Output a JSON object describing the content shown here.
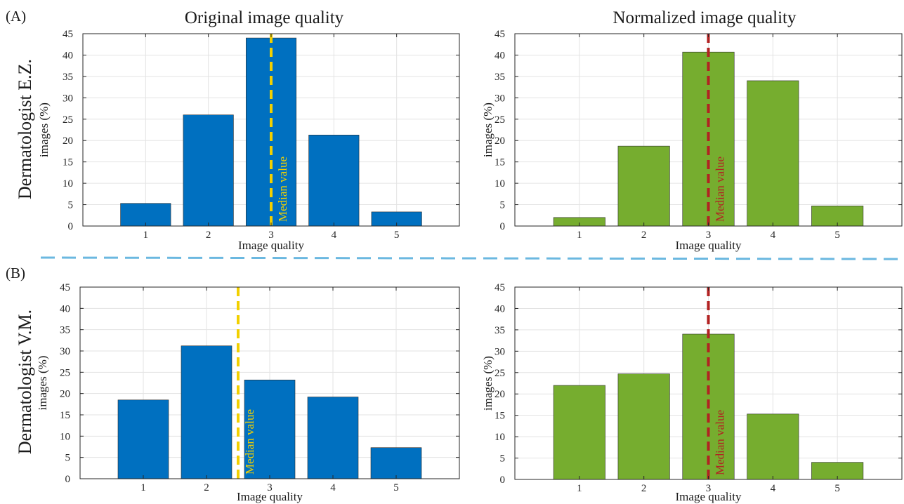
{
  "figure": {
    "column_titles": [
      "Original image quality",
      "Normalized image quality"
    ],
    "row_titles": [
      "Dermatologist E.Z.",
      "Dermatologist V.M."
    ],
    "panel_labels": [
      "(A)",
      "(B)"
    ],
    "separator_color": "#6bb8e0"
  },
  "colors": {
    "original_bar": "#0070c0",
    "normalized_bar": "#76ad2f",
    "original_median": "#f2d000",
    "normalized_median": "#b22222"
  },
  "chart_data": [
    {
      "type": "bar",
      "title": "Original image quality",
      "row": "Dermatologist E.Z.",
      "categories": [
        "1",
        "2",
        "3",
        "4",
        "5"
      ],
      "values": [
        5.3,
        26.0,
        44.0,
        21.3,
        3.3
      ],
      "xlabel": "Image quality",
      "ylabel": "images (%)",
      "ylim": [
        0,
        45
      ],
      "yticks": [
        0,
        5,
        10,
        15,
        20,
        25,
        30,
        35,
        40,
        45
      ],
      "xlim": [
        0,
        6
      ],
      "grid": true,
      "bar_color": "#0070c0",
      "median": {
        "x": 3,
        "label": "Median value",
        "color": "#f2d000"
      }
    },
    {
      "type": "bar",
      "title": "Normalized image quality",
      "row": "Dermatologist E.Z.",
      "categories": [
        "1",
        "2",
        "3",
        "4",
        "5"
      ],
      "values": [
        2.0,
        18.7,
        40.7,
        34.0,
        4.7
      ],
      "xlabel": "Image quality",
      "ylabel": "images (%)",
      "ylim": [
        0,
        45
      ],
      "yticks": [
        0,
        5,
        10,
        15,
        20,
        25,
        30,
        35,
        40,
        45
      ],
      "xlim": [
        0,
        6
      ],
      "grid": true,
      "bar_color": "#76ad2f",
      "median": {
        "x": 3,
        "label": "Median value",
        "color": "#b22222"
      }
    },
    {
      "type": "bar",
      "title": "Original image quality",
      "row": "Dermatologist V.M.",
      "categories": [
        "1",
        "2",
        "3",
        "4",
        "5"
      ],
      "values": [
        18.5,
        31.2,
        23.2,
        19.2,
        7.3
      ],
      "xlabel": "Image quality",
      "ylabel": "images (%)",
      "ylim": [
        0,
        45
      ],
      "yticks": [
        0,
        5,
        10,
        15,
        20,
        25,
        30,
        35,
        40,
        45
      ],
      "xlim": [
        0,
        6
      ],
      "grid": true,
      "bar_color": "#0070c0",
      "median": {
        "x": 2.5,
        "label": "Median value",
        "color": "#f2d000"
      }
    },
    {
      "type": "bar",
      "title": "Normalized image quality",
      "row": "Dermatologist V.M.",
      "categories": [
        "1",
        "2",
        "3",
        "4",
        "5"
      ],
      "values": [
        22.0,
        24.7,
        34.0,
        15.3,
        4.0
      ],
      "xlabel": "Image quality",
      "ylabel": "images (%)",
      "ylim": [
        0,
        45
      ],
      "yticks": [
        0,
        5,
        10,
        15,
        20,
        25,
        30,
        35,
        40,
        45
      ],
      "xlim": [
        0,
        6
      ],
      "grid": true,
      "bar_color": "#76ad2f",
      "median": {
        "x": 3,
        "label": "Median value",
        "color": "#b22222"
      }
    }
  ]
}
